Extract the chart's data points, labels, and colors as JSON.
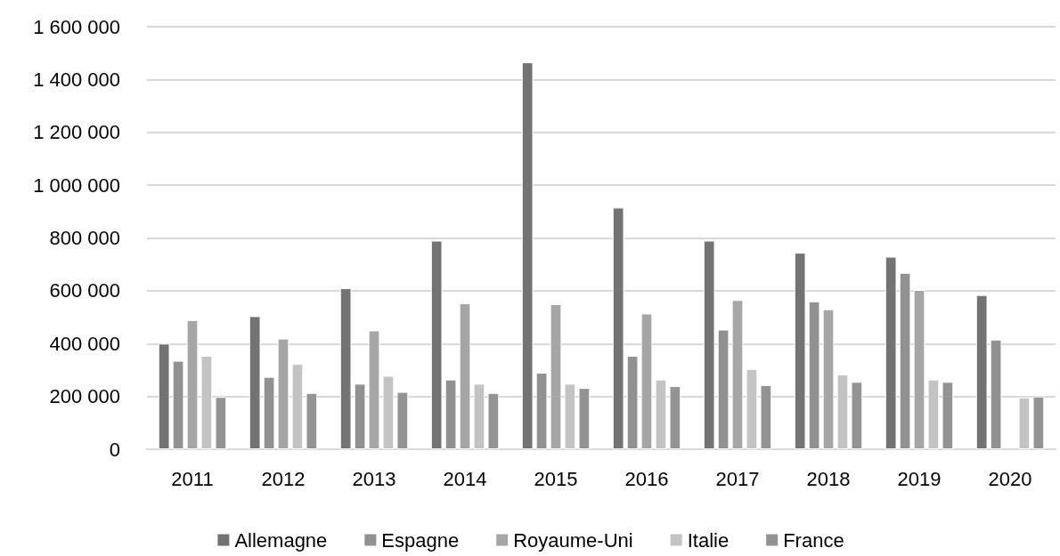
{
  "chart_data": {
    "type": "bar",
    "categories": [
      "2011",
      "2012",
      "2013",
      "2014",
      "2015",
      "2016",
      "2017",
      "2018",
      "2019",
      "2020"
    ],
    "series": [
      {
        "name": "Allemagne",
        "color": "#737373",
        "values": [
          400000,
          504000,
          610000,
          790000,
          1465000,
          915000,
          790000,
          744000,
          729000,
          584000
        ]
      },
      {
        "name": "Espagne",
        "color": "#919191",
        "values": [
          335000,
          274000,
          248000,
          264000,
          290000,
          354000,
          453000,
          560000,
          668000,
          415000
        ]
      },
      {
        "name": "Royaume-Uni",
        "color": "#a6a6a6",
        "values": [
          489000,
          419000,
          450000,
          553000,
          549000,
          514000,
          565000,
          530000,
          603000,
          null
        ]
      },
      {
        "name": "Italie",
        "color": "#c3c3c3",
        "values": [
          354000,
          323000,
          278000,
          248000,
          248000,
          264000,
          304000,
          283000,
          264000,
          196000
        ]
      },
      {
        "name": "France",
        "color": "#939393",
        "values": [
          198000,
          213000,
          217000,
          213000,
          232000,
          239000,
          243000,
          255000,
          255000,
          200000
        ]
      }
    ],
    "ylim": [
      0,
      1600000
    ],
    "yticks": [
      0,
      {
        "value": 200000,
        "label": "200 000"
      },
      {
        "value": 400000,
        "label": "400 000"
      },
      {
        "value": 600000,
        "label": "600 000"
      },
      {
        "value": 800000,
        "label": "800 000"
      },
      {
        "value": 1000000,
        "label": "1 000 000"
      },
      {
        "value": 1200000,
        "label": "1 200 000"
      },
      {
        "value": 1400000,
        "label": "1 400 000"
      },
      {
        "value": 1600000,
        "label": "1 600 000"
      }
    ],
    "grid": true,
    "legend": "bottom"
  }
}
